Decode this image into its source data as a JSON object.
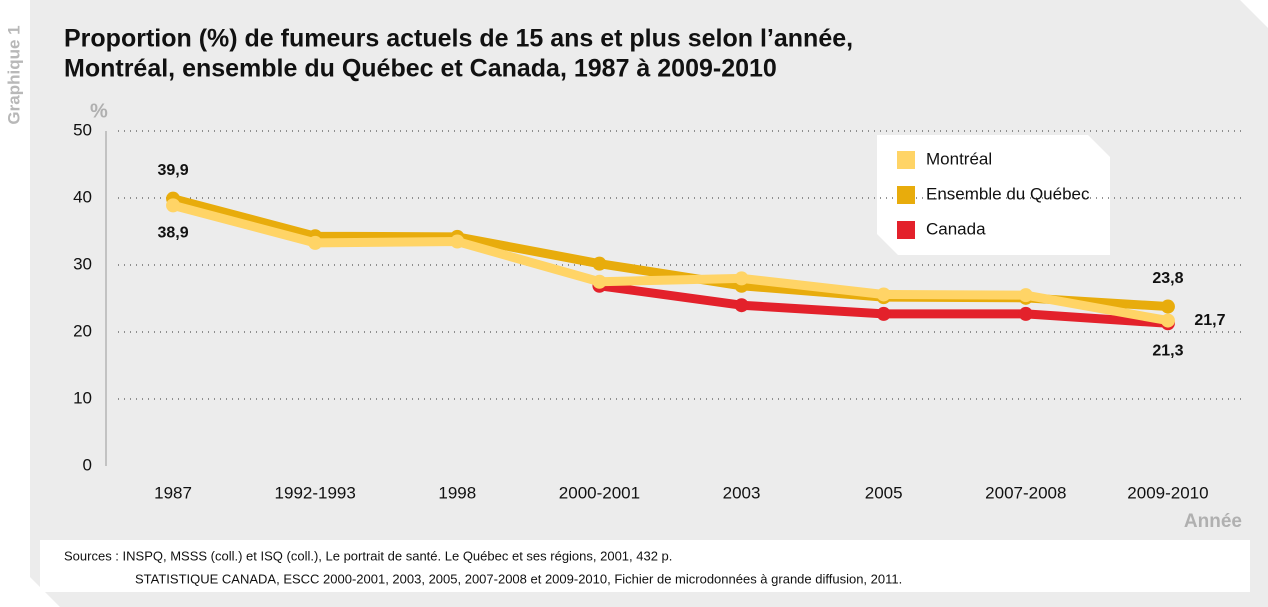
{
  "chart_data": {
    "type": "line",
    "chart_number": "Graphique 1",
    "title": [
      "Proportion (%) de fumeurs actuels de 15 ans et plus selon l’année,",
      "Montréal, ensemble du Québec et Canada, 1987 à 2009-2010"
    ],
    "y_label": "%",
    "x_label": "Année",
    "categories": [
      "1987",
      "1992-1993",
      "1998",
      "2000-2001",
      "2003",
      "2005",
      "2007-2008",
      "2009-2010"
    ],
    "series": [
      {
        "name": "Montréal",
        "color": "#ffd466",
        "values": [
          38.9,
          33.3,
          33.5,
          27.5,
          28.0,
          25.6,
          25.5,
          21.7
        ],
        "value_labels": [
          "38,9",
          null,
          null,
          null,
          null,
          null,
          null,
          "21,7"
        ]
      },
      {
        "name": "Ensemble du Québec",
        "color": "#e8ac0c",
        "values": [
          39.9,
          34.3,
          34.2,
          30.2,
          26.9,
          25.2,
          25.1,
          23.8
        ],
        "value_labels": [
          "39,9",
          null,
          null,
          null,
          null,
          null,
          null,
          "23,8"
        ]
      },
      {
        "name": "Canada",
        "color": "#e3212b",
        "values": [
          null,
          null,
          null,
          26.9,
          24.0,
          22.7,
          22.7,
          21.3
        ],
        "value_labels": [
          null,
          null,
          null,
          null,
          null,
          null,
          null,
          "21,3"
        ]
      }
    ],
    "ylim": [
      0,
      50
    ],
    "yticks": [
      0,
      10,
      20,
      30,
      40,
      50
    ],
    "grid": true,
    "sources": [
      "Sources :  INSPQ, MSSS (coll.) et ISQ (coll.), Le portrait de santé. Le Québec et ses régions, 2001, 432 p.",
      "STATISTIQUE CANADA, ESCC 2000-2001, 2003, 2005, 2007-2008 et 2009-2010, Fichier de microdonnées à grande diffusion, 2011."
    ]
  }
}
